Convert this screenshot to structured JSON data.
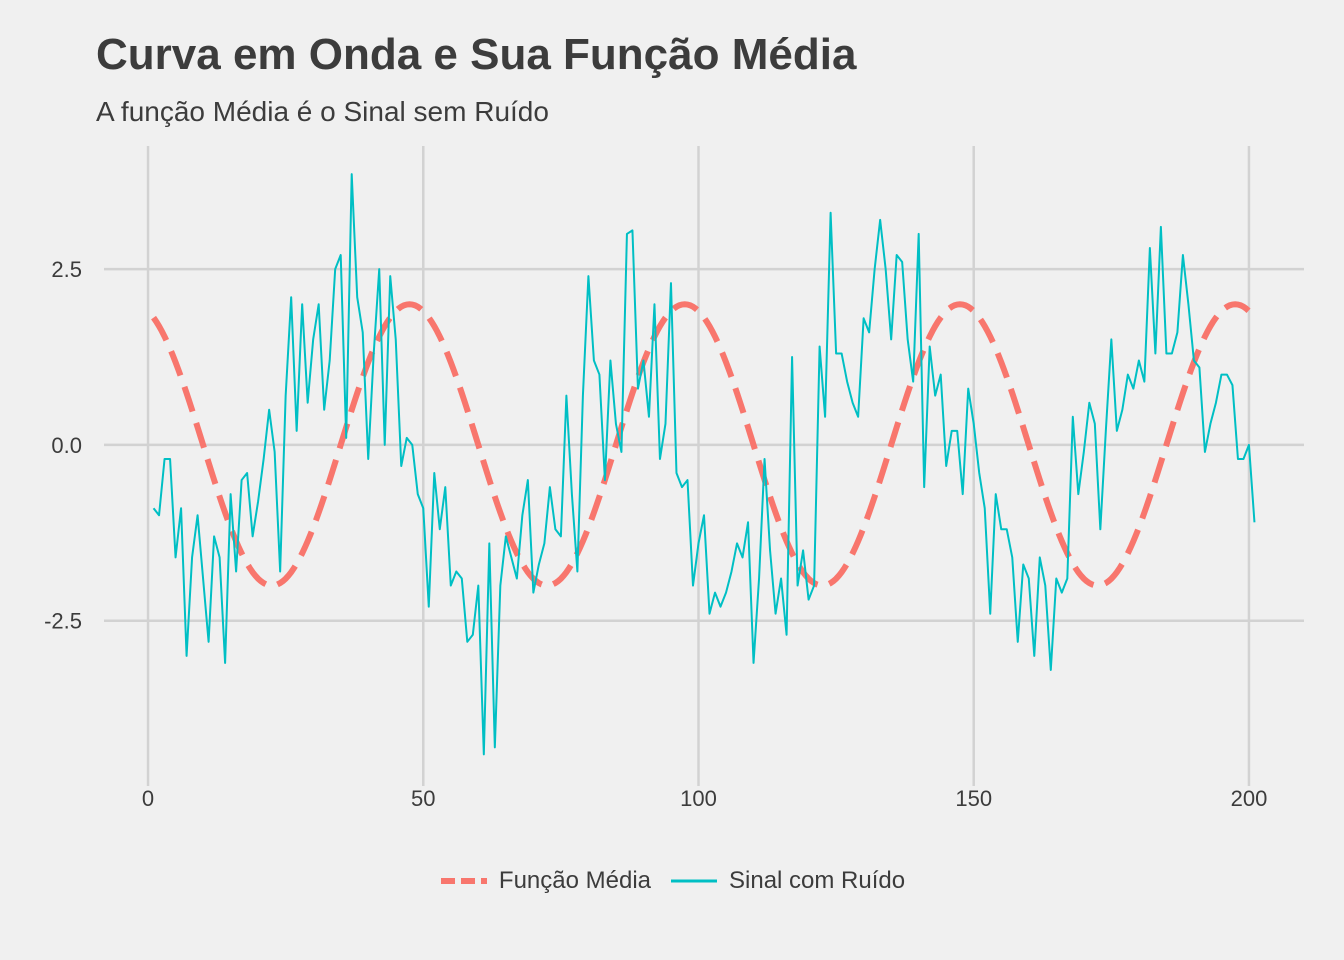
{
  "chart_data": {
    "type": "line",
    "title": "Curva em Onda e Sua Função Média",
    "subtitle": "A função Média é o Sinal sem Ruído",
    "xlabel": "",
    "ylabel": "",
    "xlim": [
      -8,
      210
    ],
    "ylim": [
      -4.85,
      4.25
    ],
    "x_ticks": [
      0,
      50,
      100,
      150,
      200
    ],
    "x_tick_labels": [
      "0",
      "50",
      "100",
      "150",
      "200"
    ],
    "y_ticks": [
      -2.5,
      0.0,
      2.5
    ],
    "y_tick_labels": [
      "-2.5",
      "0.0",
      "2.5"
    ],
    "grid": true,
    "legend_position": "bottom",
    "series": [
      {
        "name": "Função Média",
        "color": "#f8766d",
        "style": "dashed",
        "formula": "2*sin(2*pi*(x+15)/50)",
        "x_range": [
          1,
          200
        ]
      },
      {
        "name": "Sinal com Ruído",
        "color": "#00bfc4",
        "style": "solid",
        "x_start": 1,
        "values": [
          -0.9,
          -1.0,
          -0.2,
          -0.2,
          -1.6,
          -0.9,
          -3.0,
          -1.6,
          -1.0,
          -1.9,
          -2.8,
          -1.3,
          -1.6,
          -3.1,
          -0.7,
          -1.8,
          -0.5,
          -0.4,
          -1.3,
          -0.8,
          -0.2,
          0.5,
          -0.1,
          -1.8,
          0.7,
          2.1,
          0.2,
          2.0,
          0.6,
          1.5,
          2.0,
          0.5,
          1.2,
          2.5,
          2.7,
          0.1,
          3.85,
          2.1,
          1.6,
          -0.2,
          1.3,
          2.5,
          0.0,
          2.4,
          1.5,
          -0.3,
          0.1,
          0.0,
          -0.7,
          -0.9,
          -2.3,
          -0.4,
          -1.2,
          -0.6,
          -2.0,
          -1.8,
          -1.9,
          -2.8,
          -2.7,
          -2.0,
          -4.4,
          -1.4,
          -4.3,
          -2.0,
          -1.3,
          -1.6,
          -1.9,
          -1.0,
          -0.5,
          -2.1,
          -1.7,
          -1.4,
          -0.6,
          -1.2,
          -1.3,
          0.7,
          -0.7,
          -1.8,
          0.7,
          2.4,
          1.2,
          1.0,
          -0.5,
          1.2,
          0.3,
          -0.1,
          3.0,
          3.05,
          0.8,
          1.2,
          0.4,
          2.0,
          -0.2,
          0.3,
          2.3,
          -0.4,
          -0.6,
          -0.5,
          -2.0,
          -1.4,
          -1.0,
          -2.4,
          -2.1,
          -2.3,
          -2.1,
          -1.8,
          -1.4,
          -1.6,
          -1.1,
          -3.1,
          -1.9,
          -0.2,
          -1.5,
          -2.4,
          -1.9,
          -2.7,
          1.25,
          -2.0,
          -1.5,
          -2.2,
          -2.0,
          1.4,
          0.4,
          3.3,
          1.3,
          1.3,
          0.9,
          0.6,
          0.4,
          1.8,
          1.6,
          2.5,
          3.2,
          2.5,
          1.5,
          2.7,
          2.6,
          1.5,
          0.9,
          3.0,
          -0.6,
          1.4,
          0.7,
          1.0,
          -0.3,
          0.2,
          0.2,
          -0.7,
          0.8,
          0.3,
          -0.4,
          -0.9,
          -2.4,
          -0.7,
          -1.2,
          -1.2,
          -1.6,
          -2.8,
          -1.7,
          -1.9,
          -3.0,
          -1.6,
          -2.0,
          -3.2,
          -1.9,
          -2.1,
          -1.9,
          0.4,
          -0.7,
          -0.1,
          0.6,
          0.3,
          -1.2,
          0.2,
          1.5,
          0.2,
          0.5,
          1.0,
          0.8,
          1.2,
          0.9,
          2.8,
          1.3,
          3.1,
          1.3,
          1.3,
          1.6,
          2.7,
          2.0,
          1.2,
          1.1,
          -0.1,
          0.3,
          0.6,
          1.0,
          1.0,
          0.85,
          -0.2,
          -0.2,
          0.0,
          -1.1
        ]
      }
    ]
  }
}
